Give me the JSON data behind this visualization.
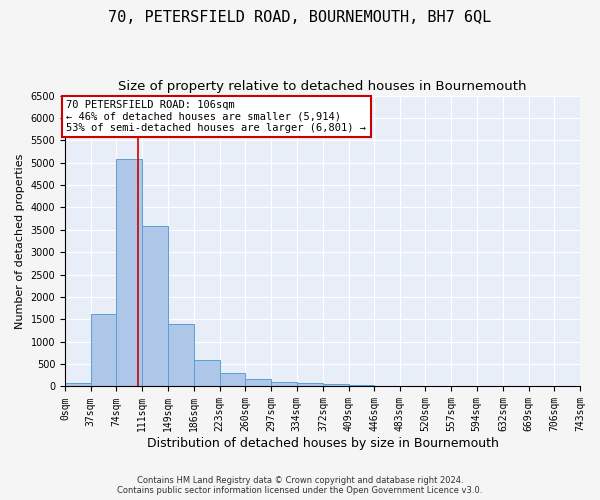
{
  "title": "70, PETERSFIELD ROAD, BOURNEMOUTH, BH7 6QL",
  "subtitle": "Size of property relative to detached houses in Bournemouth",
  "xlabel": "Distribution of detached houses by size in Bournemouth",
  "ylabel": "Number of detached properties",
  "footer_line1": "Contains HM Land Registry data © Crown copyright and database right 2024.",
  "footer_line2": "Contains public sector information licensed under the Open Government Licence v3.0.",
  "bin_edges": [
    0,
    37,
    74,
    111,
    149,
    186,
    223,
    260,
    297,
    334,
    372,
    409,
    446,
    483,
    520,
    557,
    594,
    632,
    669,
    706,
    743
  ],
  "bar_heights": [
    75,
    1625,
    5075,
    3575,
    1400,
    600,
    300,
    160,
    110,
    80,
    50,
    30,
    15,
    10,
    5,
    3,
    2,
    1,
    1,
    1
  ],
  "bar_color": "#aec6e8",
  "bar_edge_color": "#5a9fd4",
  "vline_x": 106,
  "vline_color": "#cc0000",
  "annotation_text": "70 PETERSFIELD ROAD: 106sqm\n← 46% of detached houses are smaller (5,914)\n53% of semi-detached houses are larger (6,801) →",
  "annotation_box_color": "#ffffff",
  "annotation_box_edge": "#cc0000",
  "ylim": [
    0,
    6500
  ],
  "yticks": [
    0,
    500,
    1000,
    1500,
    2000,
    2500,
    3000,
    3500,
    4000,
    4500,
    5000,
    5500,
    6000,
    6500
  ],
  "bg_color": "#e8eef8",
  "fig_bg_color": "#f5f5f5",
  "grid_color": "#ffffff",
  "title_fontsize": 11,
  "subtitle_fontsize": 9.5,
  "xlabel_fontsize": 9,
  "ylabel_fontsize": 8,
  "tick_fontsize": 7,
  "annotation_fontsize": 7.5
}
